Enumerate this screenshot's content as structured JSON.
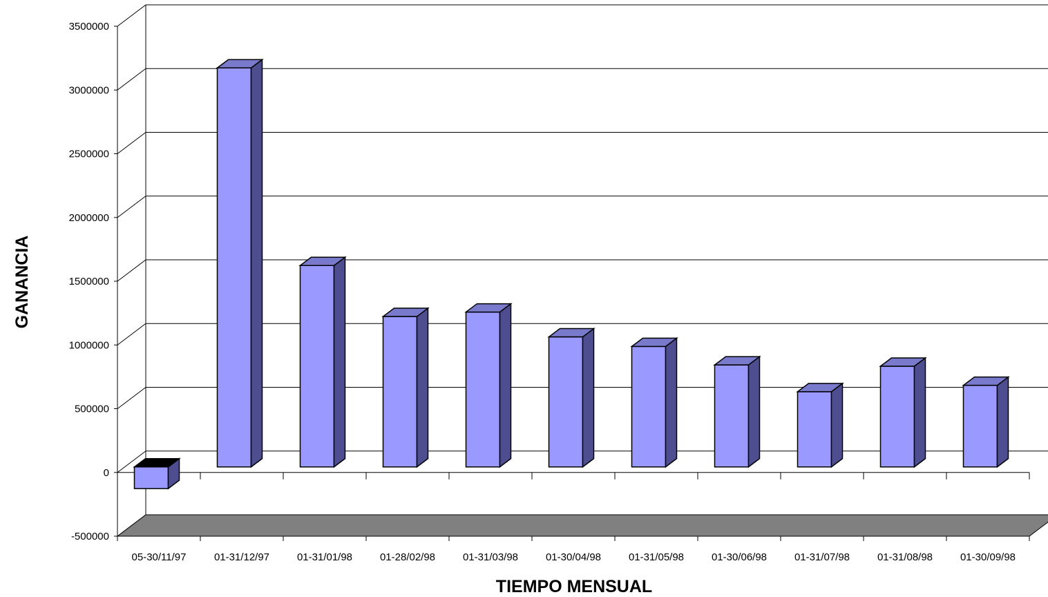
{
  "chart_data": {
    "type": "bar",
    "title": "",
    "xlabel": "TIEMPO MENSUAL",
    "ylabel": "GANANCIA",
    "categories": [
      "05-30/11/97",
      "01-31/12/97",
      "01-31/01/98",
      "01-28/02/98",
      "01-31/03/98",
      "01-30/04/98",
      "01-31/05/98",
      "01-30/06/98",
      "01-31/07/98",
      "01-31/08/98",
      "01-30/09/98"
    ],
    "values": [
      -170000,
      3130000,
      1580000,
      1180000,
      1215000,
      1020000,
      945000,
      800000,
      590000,
      790000,
      640000
    ],
    "ylim": [
      -500000,
      3500000
    ],
    "yticks": [
      "-500000",
      "0",
      "500000",
      "1000000",
      "1500000",
      "2000000",
      "2500000",
      "3000000",
      "3500000"
    ],
    "ytick_values": [
      -500000,
      0,
      500000,
      1000000,
      1500000,
      2000000,
      2500000,
      3000000,
      3500000
    ],
    "grid": true,
    "legend": "none",
    "style": "3d-column",
    "colors": {
      "bar_front": "#9999ff",
      "bar_side": "#4d4d8f",
      "bar_top": "#7a7acc",
      "bar_top_negative": "#000000",
      "floor": "#808080",
      "gridline": "#000000",
      "wall": "#ffffff"
    }
  }
}
